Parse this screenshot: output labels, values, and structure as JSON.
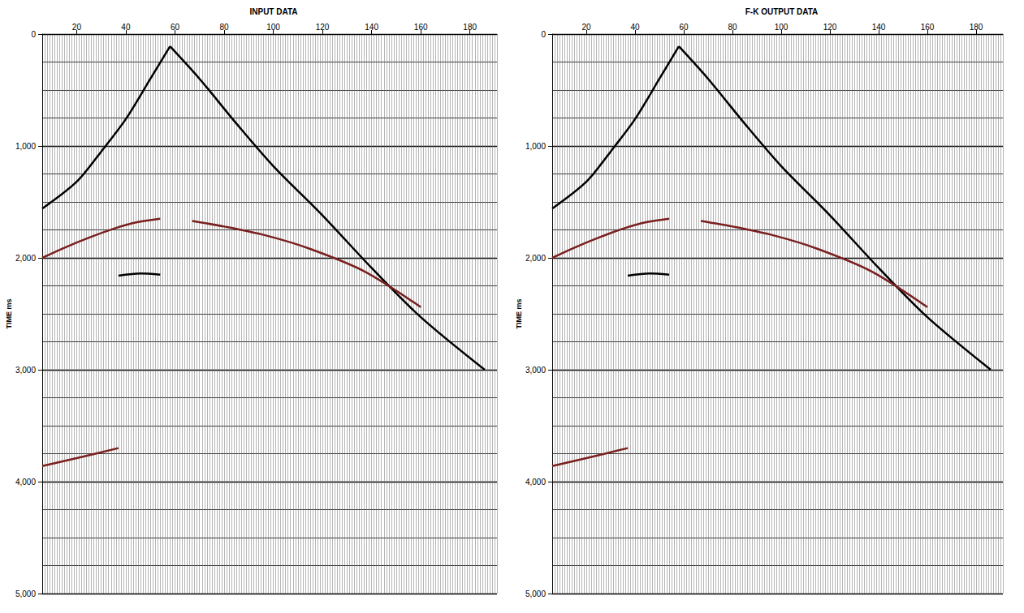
{
  "chart_data": [
    {
      "type": "line",
      "title": "INPUT DATA",
      "ylabel": "TIME ms",
      "xlim": [
        6,
        191
      ],
      "xticks": [
        20,
        40,
        60,
        80,
        100,
        120,
        140,
        160,
        180
      ],
      "ylim": [
        0,
        5000
      ],
      "yticks": [
        0,
        1000,
        2000,
        3000,
        4000,
        5000
      ],
      "grid": true,
      "series": [
        {
          "color": "#000000",
          "x": [
            58,
            50,
            40,
            30,
            20,
            6
          ],
          "values": [
            110,
            400,
            760,
            1050,
            1320,
            1560
          ]
        },
        {
          "color": "#000000",
          "x": [
            58,
            70,
            85,
            100,
            120,
            140,
            160,
            186
          ],
          "values": [
            110,
            400,
            800,
            1180,
            1620,
            2090,
            2530,
            3000
          ]
        },
        {
          "color": "#7a1f1f",
          "x": [
            54,
            45,
            35,
            25,
            15,
            6
          ],
          "values": [
            1650,
            1680,
            1740,
            1820,
            1910,
            2000
          ]
        },
        {
          "color": "#7a1f1f",
          "x": [
            67,
            80,
            97,
            115,
            137,
            160
          ],
          "values": [
            1670,
            1720,
            1800,
            1920,
            2120,
            2440
          ]
        },
        {
          "color": "#000000",
          "x": [
            37,
            46,
            54
          ],
          "values": [
            2160,
            2140,
            2150
          ]
        },
        {
          "color": "#7a1f1f",
          "x": [
            6,
            20,
            37
          ],
          "values": [
            3860,
            3790,
            3700
          ]
        }
      ]
    },
    {
      "type": "line",
      "title": "F-K OUTPUT DATA",
      "ylabel": "TIME ms",
      "xlim": [
        6,
        191
      ],
      "xticks": [
        20,
        40,
        60,
        80,
        100,
        120,
        140,
        160,
        180
      ],
      "ylim": [
        0,
        5000
      ],
      "yticks": [
        0,
        1000,
        2000,
        3000,
        4000,
        5000
      ],
      "grid": true,
      "series": [
        {
          "color": "#000000",
          "x": [
            58,
            50,
            40,
            30,
            20,
            6
          ],
          "values": [
            110,
            400,
            760,
            1050,
            1320,
            1560
          ]
        },
        {
          "color": "#000000",
          "x": [
            58,
            70,
            85,
            100,
            120,
            140,
            160,
            186
          ],
          "values": [
            110,
            400,
            800,
            1180,
            1620,
            2090,
            2530,
            3000
          ]
        },
        {
          "color": "#7a1f1f",
          "x": [
            54,
            45,
            35,
            25,
            15,
            6
          ],
          "values": [
            1650,
            1680,
            1740,
            1820,
            1910,
            2000
          ]
        },
        {
          "color": "#7a1f1f",
          "x": [
            67,
            80,
            97,
            115,
            137,
            160
          ],
          "values": [
            1670,
            1720,
            1800,
            1920,
            2120,
            2440
          ]
        },
        {
          "color": "#000000",
          "x": [
            37,
            46,
            54
          ],
          "values": [
            2160,
            2140,
            2150
          ]
        },
        {
          "color": "#7a1f1f",
          "x": [
            6,
            20,
            37
          ],
          "values": [
            3860,
            3790,
            3700
          ]
        }
      ]
    }
  ]
}
